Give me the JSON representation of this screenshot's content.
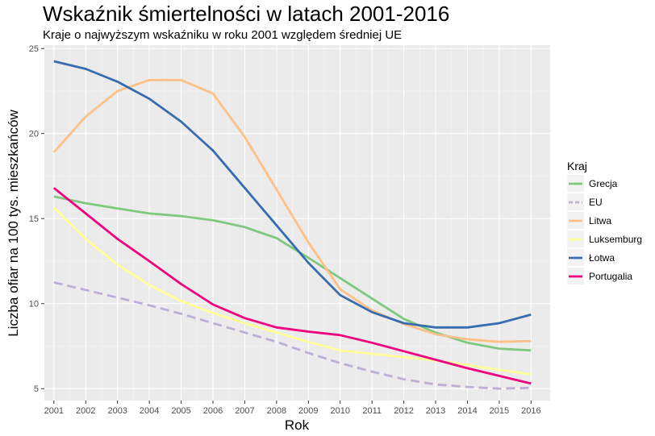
{
  "chart_data": {
    "type": "line",
    "title": "Wskaźnik śmiertelności w latach 2001-2016",
    "subtitle": "Kraje o najwyższym wskaźniku w roku 2001 względem średniej UE",
    "xlabel": "Rok",
    "ylabel": "Liczba ofiar na 100 tys. mieszkańców",
    "x": [
      2001,
      2002,
      2003,
      2004,
      2005,
      2006,
      2007,
      2008,
      2009,
      2010,
      2011,
      2012,
      2013,
      2014,
      2015,
      2016
    ],
    "xlim": [
      2000.7,
      2016.6
    ],
    "ylim": [
      4.3,
      25.2
    ],
    "yticks": [
      5,
      10,
      15,
      20,
      25
    ],
    "grid": true,
    "legend_title": "Kraj",
    "legend_position": "right",
    "series": [
      {
        "name": "Grecja",
        "color": "#7fc97f",
        "dash": false,
        "values": [
          16.3,
          15.9,
          15.6,
          15.3,
          15.15,
          14.9,
          14.5,
          13.85,
          12.7,
          11.5,
          10.3,
          9.1,
          8.3,
          7.7,
          7.35,
          7.25
        ]
      },
      {
        "name": "EU",
        "color": "#beaed4",
        "dash": true,
        "values": [
          11.25,
          10.8,
          10.35,
          9.9,
          9.4,
          8.85,
          8.3,
          7.75,
          7.1,
          6.5,
          6.0,
          5.55,
          5.25,
          5.1,
          5.0,
          5.05
        ]
      },
      {
        "name": "Litwa",
        "color": "#fdc086",
        "dash": false,
        "values": [
          18.9,
          21.0,
          22.5,
          23.15,
          23.15,
          22.35,
          19.8,
          16.7,
          13.6,
          10.85,
          9.6,
          8.8,
          8.2,
          7.9,
          7.75,
          7.8
        ]
      },
      {
        "name": "Luksemburg",
        "color": "#ffff99",
        "dash": false,
        "values": [
          15.65,
          13.8,
          12.3,
          11.1,
          10.15,
          9.45,
          8.85,
          8.3,
          7.75,
          7.25,
          7.05,
          6.85,
          6.65,
          6.4,
          6.1,
          5.85
        ]
      },
      {
        "name": "Łotwa",
        "color": "#386cb0",
        "dash": false,
        "values": [
          24.25,
          23.8,
          23.05,
          22.05,
          20.7,
          19.0,
          16.8,
          14.6,
          12.4,
          10.5,
          9.5,
          8.85,
          8.6,
          8.6,
          8.85,
          9.35
        ]
      },
      {
        "name": "Portugalia",
        "color": "#f0027f",
        "dash": false,
        "values": [
          16.8,
          15.3,
          13.8,
          12.5,
          11.15,
          9.95,
          9.15,
          8.6,
          8.35,
          8.15,
          7.7,
          7.2,
          6.7,
          6.2,
          5.75,
          5.3
        ]
      }
    ]
  }
}
